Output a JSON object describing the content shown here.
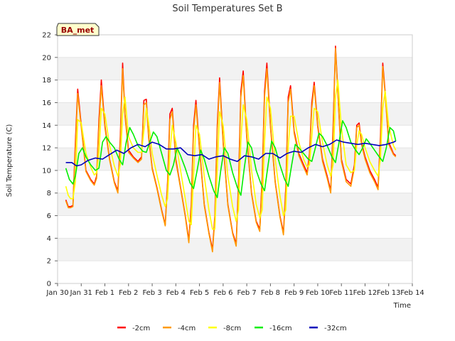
{
  "chart_data": {
    "type": "line",
    "title": "Soil Temperatures Set B",
    "xlabel": "Time",
    "ylabel": "Soil Temperature (C)",
    "badge": "BA_met",
    "xlim": [
      0,
      15
    ],
    "ylim": [
      0,
      22
    ],
    "x_tick_values": [
      0,
      1,
      2,
      3,
      4,
      5,
      6,
      7,
      8,
      9,
      10,
      11,
      12,
      13,
      14,
      15
    ],
    "x_tick_labels": [
      "Jan 30",
      "Jan 31",
      "Feb 1",
      "Feb 2",
      "Feb 3",
      "Feb 4",
      "Feb 5",
      "Feb 6",
      "Feb 7",
      "Feb 8",
      "Feb 9",
      "Feb 10",
      "Feb 11",
      "Feb 12",
      "Feb 13",
      "Feb 14"
    ],
    "y_tick_values": [
      0,
      2,
      4,
      6,
      8,
      10,
      12,
      14,
      16,
      18,
      20,
      22
    ],
    "grid": "horizontal bands",
    "legend_position": "bottom",
    "series": [
      {
        "name": "-2cm",
        "color": "#ff0000",
        "x": [
          0.35,
          0.45,
          0.55,
          0.65,
          0.75,
          0.85,
          1.0,
          1.2,
          1.4,
          1.55,
          1.65,
          1.75,
          1.85,
          2.0,
          2.2,
          2.4,
          2.55,
          2.65,
          2.75,
          2.85,
          3.0,
          3.2,
          3.4,
          3.55,
          3.65,
          3.75,
          3.85,
          4.0,
          4.2,
          4.4,
          4.55,
          4.65,
          4.75,
          4.85,
          5.0,
          5.2,
          5.4,
          5.55,
          5.65,
          5.75,
          5.85,
          6.0,
          6.2,
          6.4,
          6.55,
          6.65,
          6.75,
          6.85,
          7.0,
          7.2,
          7.4,
          7.55,
          7.65,
          7.75,
          7.85,
          8.0,
          8.2,
          8.4,
          8.55,
          8.65,
          8.75,
          8.85,
          9.0,
          9.2,
          9.4,
          9.55,
          9.65,
          9.75,
          9.85,
          10.0,
          10.2,
          10.4,
          10.55,
          10.65,
          10.75,
          10.85,
          11.0,
          11.2,
          11.4,
          11.55,
          11.65,
          11.75,
          11.85,
          12.0,
          12.2,
          12.4,
          12.55,
          12.65,
          12.75,
          12.85,
          13.0,
          13.2,
          13.4,
          13.55,
          13.65,
          13.75,
          13.85,
          14.0,
          14.2,
          14.3
        ],
        "y": [
          7.4,
          6.8,
          6.8,
          6.9,
          12.5,
          17.2,
          14.0,
          10.0,
          9.2,
          8.8,
          9.5,
          14.5,
          18.0,
          14.0,
          11.0,
          9.0,
          8.2,
          13.0,
          19.5,
          15.0,
          11.8,
          11.2,
          10.8,
          11.2,
          16.2,
          16.3,
          13.0,
          10.2,
          8.5,
          6.5,
          5.2,
          9.0,
          15.0,
          15.5,
          11.0,
          8.5,
          6.0,
          3.8,
          7.0,
          14.0,
          16.2,
          12.0,
          7.0,
          4.5,
          3.0,
          6.0,
          14.0,
          18.2,
          12.5,
          7.0,
          4.5,
          3.5,
          9.0,
          17.0,
          18.8,
          13.0,
          8.0,
          5.5,
          4.8,
          9.5,
          17.0,
          19.5,
          14.0,
          9.0,
          6.0,
          4.5,
          8.5,
          16.5,
          17.5,
          13.5,
          11.5,
          10.5,
          9.8,
          11.5,
          16.0,
          17.8,
          14.0,
          11.0,
          9.5,
          8.2,
          14.0,
          21.0,
          17.0,
          11.0,
          9.2,
          8.8,
          10.5,
          14.0,
          14.2,
          12.5,
          11.2,
          10.0,
          9.2,
          8.5,
          13.0,
          19.5,
          17.0,
          12.5,
          11.5,
          11.3
        ]
      },
      {
        "name": "-4cm",
        "color": "#ff9900",
        "x": [
          0.35,
          0.45,
          0.55,
          0.65,
          0.75,
          0.85,
          1.0,
          1.2,
          1.4,
          1.55,
          1.65,
          1.75,
          1.85,
          2.0,
          2.2,
          2.4,
          2.55,
          2.65,
          2.75,
          2.85,
          3.0,
          3.2,
          3.4,
          3.55,
          3.65,
          3.75,
          3.85,
          4.0,
          4.2,
          4.4,
          4.55,
          4.65,
          4.75,
          4.85,
          5.0,
          5.2,
          5.4,
          5.55,
          5.65,
          5.75,
          5.85,
          6.0,
          6.2,
          6.4,
          6.55,
          6.65,
          6.75,
          6.85,
          7.0,
          7.2,
          7.4,
          7.55,
          7.65,
          7.75,
          7.85,
          8.0,
          8.2,
          8.4,
          8.55,
          8.65,
          8.75,
          8.85,
          9.0,
          9.2,
          9.4,
          9.55,
          9.65,
          9.75,
          9.85,
          10.0,
          10.2,
          10.4,
          10.55,
          10.65,
          10.75,
          10.85,
          11.0,
          11.2,
          11.4,
          11.55,
          11.65,
          11.75,
          11.85,
          12.0,
          12.2,
          12.4,
          12.55,
          12.65,
          12.75,
          12.85,
          13.0,
          13.2,
          13.4,
          13.55,
          13.65,
          13.75,
          13.85,
          14.0,
          14.2,
          14.3
        ],
        "y": [
          7.3,
          6.7,
          6.7,
          6.8,
          12.0,
          16.8,
          13.8,
          9.9,
          9.1,
          8.7,
          9.3,
          14.0,
          17.5,
          13.8,
          10.9,
          8.9,
          8.0,
          12.5,
          19.0,
          14.8,
          11.6,
          11.1,
          10.7,
          11.0,
          15.8,
          16.0,
          12.8,
          10.1,
          8.4,
          6.4,
          5.1,
          8.7,
          14.5,
          15.2,
          10.8,
          8.4,
          5.9,
          3.6,
          6.7,
          13.5,
          15.8,
          11.8,
          6.9,
          4.4,
          2.8,
          5.7,
          13.5,
          17.8,
          12.3,
          6.9,
          4.4,
          3.3,
          8.6,
          16.5,
          18.4,
          12.8,
          7.9,
          5.4,
          4.6,
          9.1,
          16.5,
          19.0,
          13.8,
          8.9,
          5.9,
          4.3,
          8.1,
          16.0,
          17.2,
          13.3,
          11.3,
          10.3,
          9.6,
          11.2,
          15.5,
          17.5,
          13.8,
          10.8,
          9.3,
          8.0,
          13.5,
          20.8,
          16.8,
          10.8,
          9.0,
          8.6,
          10.2,
          13.8,
          14.0,
          12.3,
          11.0,
          9.8,
          9.0,
          8.3,
          12.5,
          19.2,
          16.8,
          12.3,
          11.4,
          11.2
        ]
      },
      {
        "name": "-8cm",
        "color": "#ffff00",
        "x": [
          0.35,
          0.45,
          0.55,
          0.65,
          0.75,
          0.85,
          1.0,
          1.2,
          1.4,
          1.55,
          1.65,
          1.75,
          1.85,
          2.0,
          2.2,
          2.4,
          2.55,
          2.65,
          2.75,
          2.85,
          3.0,
          3.2,
          3.4,
          3.55,
          3.65,
          3.75,
          3.85,
          4.0,
          4.2,
          4.4,
          4.55,
          4.65,
          4.75,
          4.85,
          5.0,
          5.2,
          5.4,
          5.55,
          5.65,
          5.75,
          5.85,
          6.0,
          6.2,
          6.4,
          6.55,
          6.65,
          6.75,
          6.85,
          7.0,
          7.2,
          7.4,
          7.55,
          7.65,
          7.75,
          7.85,
          8.0,
          8.2,
          8.4,
          8.55,
          8.65,
          8.75,
          8.85,
          9.0,
          9.2,
          9.4,
          9.55,
          9.65,
          9.75,
          9.85,
          10.0,
          10.2,
          10.4,
          10.55,
          10.65,
          10.75,
          10.85,
          11.0,
          11.2,
          11.4,
          11.55,
          11.65,
          11.75,
          11.85,
          12.0,
          12.2,
          12.4,
          12.55,
          12.65,
          12.75,
          12.85,
          13.0,
          13.2,
          13.4,
          13.55,
          13.65,
          13.75,
          13.85,
          14.0,
          14.2,
          14.3
        ],
        "y": [
          8.6,
          7.8,
          7.5,
          7.5,
          9.0,
          14.5,
          14.2,
          11.5,
          10.3,
          9.6,
          9.8,
          11.5,
          15.5,
          15.0,
          12.2,
          10.4,
          9.5,
          10.5,
          15.0,
          16.5,
          13.0,
          12.0,
          11.6,
          11.6,
          13.5,
          15.5,
          14.2,
          11.5,
          9.6,
          7.8,
          6.8,
          7.5,
          11.5,
          14.0,
          12.5,
          10.0,
          7.5,
          5.5,
          5.2,
          9.5,
          14.0,
          13.2,
          9.5,
          6.5,
          4.8,
          4.8,
          10.0,
          15.2,
          14.0,
          9.5,
          6.8,
          5.5,
          6.5,
          12.5,
          15.8,
          14.5,
          10.0,
          7.0,
          5.8,
          6.5,
          12.5,
          16.5,
          15.5,
          11.0,
          7.8,
          6.0,
          6.5,
          12.0,
          14.8,
          14.8,
          12.5,
          11.0,
          10.3,
          10.5,
          13.0,
          15.5,
          15.2,
          12.5,
          10.5,
          9.5,
          10.5,
          16.5,
          18.0,
          13.8,
          10.5,
          9.8,
          10.0,
          12.2,
          13.5,
          13.2,
          12.0,
          10.8,
          10.0,
          9.5,
          11.0,
          15.5,
          17.0,
          14.0,
          12.2,
          11.8
        ]
      },
      {
        "name": "-16cm",
        "color": "#00ee00",
        "x": [
          0.35,
          0.5,
          0.65,
          0.75,
          0.9,
          1.05,
          1.2,
          1.4,
          1.6,
          1.75,
          1.9,
          2.05,
          2.2,
          2.4,
          2.6,
          2.75,
          2.9,
          3.05,
          3.2,
          3.4,
          3.6,
          3.75,
          3.9,
          4.05,
          4.2,
          4.4,
          4.6,
          4.75,
          4.9,
          5.05,
          5.2,
          5.4,
          5.6,
          5.75,
          5.9,
          6.05,
          6.2,
          6.4,
          6.6,
          6.75,
          6.9,
          7.05,
          7.2,
          7.4,
          7.6,
          7.75,
          7.9,
          8.05,
          8.2,
          8.4,
          8.6,
          8.75,
          8.9,
          9.05,
          9.2,
          9.4,
          9.6,
          9.75,
          9.9,
          10.05,
          10.2,
          10.4,
          10.6,
          10.75,
          10.9,
          11.05,
          11.2,
          11.4,
          11.6,
          11.75,
          11.9,
          12.05,
          12.2,
          12.4,
          12.6,
          12.75,
          12.9,
          13.05,
          13.2,
          13.4,
          13.6,
          13.75,
          13.9,
          14.05,
          14.2,
          14.3
        ],
        "y": [
          10.2,
          9.2,
          8.8,
          9.5,
          11.5,
          12.0,
          11.2,
          10.5,
          10.0,
          10.2,
          12.5,
          13.0,
          12.5,
          12.0,
          11.0,
          10.5,
          12.5,
          13.8,
          13.2,
          12.2,
          11.7,
          11.6,
          12.5,
          13.4,
          13.0,
          11.5,
          10.0,
          9.6,
          10.5,
          12.0,
          11.3,
          10.2,
          8.9,
          8.4,
          10.0,
          11.8,
          11.0,
          9.5,
          8.2,
          7.6,
          10.0,
          12.0,
          11.5,
          9.8,
          8.5,
          7.8,
          10.3,
          12.5,
          12.0,
          10.0,
          8.8,
          8.2,
          10.5,
          12.6,
          12.0,
          10.5,
          9.2,
          8.6,
          10.5,
          12.3,
          12.0,
          11.5,
          11.0,
          10.8,
          12.0,
          13.3,
          13.0,
          12.2,
          11.2,
          10.7,
          12.5,
          14.4,
          13.8,
          12.5,
          11.8,
          11.4,
          12.0,
          12.8,
          12.4,
          11.8,
          11.2,
          10.8,
          12.0,
          13.8,
          13.5,
          12.6
        ]
      },
      {
        "name": "-32cm",
        "color": "#0000bb",
        "x": [
          0.35,
          0.6,
          0.8,
          1.0,
          1.3,
          1.6,
          1.9,
          2.2,
          2.5,
          2.8,
          3.1,
          3.4,
          3.7,
          4.0,
          4.3,
          4.6,
          4.9,
          5.2,
          5.5,
          5.8,
          6.1,
          6.4,
          6.7,
          7.0,
          7.3,
          7.6,
          7.9,
          8.2,
          8.5,
          8.8,
          9.1,
          9.4,
          9.7,
          10.0,
          10.3,
          10.6,
          10.9,
          11.2,
          11.5,
          11.8,
          12.1,
          12.4,
          12.7,
          13.0,
          13.3,
          13.6,
          13.9,
          14.2,
          14.3
        ],
        "y": [
          10.7,
          10.7,
          10.4,
          10.5,
          10.9,
          11.1,
          11.0,
          11.4,
          11.8,
          11.5,
          12.0,
          12.3,
          12.1,
          12.5,
          12.3,
          11.9,
          11.9,
          12.0,
          11.4,
          11.3,
          11.4,
          11.0,
          11.2,
          11.3,
          11.0,
          10.8,
          11.3,
          11.2,
          11.0,
          11.5,
          11.5,
          11.1,
          11.5,
          11.7,
          11.6,
          12.0,
          12.3,
          12.1,
          12.3,
          12.7,
          12.5,
          12.4,
          12.3,
          12.4,
          12.3,
          12.2,
          12.3,
          12.5,
          12.6
        ]
      }
    ]
  }
}
